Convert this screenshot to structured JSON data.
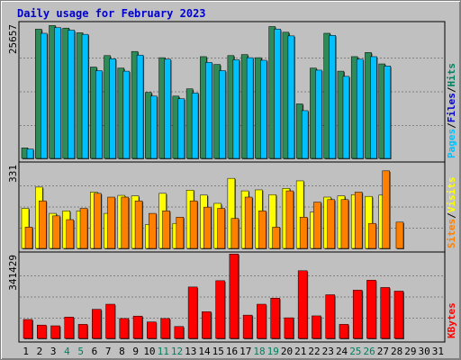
{
  "chart_data": {
    "type": "bar",
    "title": "Daily usage for February 2023",
    "x": [
      "1",
      "2",
      "3",
      "4",
      "5",
      "6",
      "7",
      "8",
      "9",
      "10",
      "11",
      "12",
      "13",
      "14",
      "15",
      "16",
      "17",
      "18",
      "19",
      "20",
      "21",
      "22",
      "23",
      "24",
      "25",
      "26",
      "27",
      "28",
      "29",
      "30",
      "31"
    ],
    "weekend_days": [
      "4",
      "5",
      "11",
      "12",
      "18",
      "19",
      "25",
      "26"
    ],
    "panels": [
      {
        "name": "top",
        "max_label": "25657",
        "ymax": 25657,
        "legend": [
          "Pages",
          "/",
          "Files",
          "/",
          "Hits"
        ],
        "legend_colors": [
          "#00c0ff",
          "#000000",
          "#0000d0",
          "#000000",
          "#008060"
        ],
        "series": [
          {
            "name": "Hits",
            "color": "#2e8b57",
            "values": [
              2020,
              24900,
              25600,
              25100,
              24200,
              17600,
              19800,
              17400,
              20600,
              12700,
              19400,
              12000,
              13400,
              19600,
              18100,
              19800,
              20000,
              19400,
              25400,
              24300,
              10500,
              17400,
              24100,
              16800,
              19600,
              20400,
              18200,
              0,
              0,
              0,
              0
            ]
          },
          {
            "name": "Files",
            "color": "#0000d0",
            "values": [
              0,
              0,
              0,
              0,
              0,
              0,
              0,
              0,
              0,
              0,
              0,
              0,
              0,
              0,
              0,
              0,
              0,
              0,
              0,
              0,
              0,
              0,
              0,
              0,
              0,
              0,
              0,
              0,
              0,
              0,
              0
            ]
          },
          {
            "name": "Pages",
            "color": "#00c0ff",
            "values": [
              1800,
              24100,
              25200,
              24700,
              23900,
              16900,
              19200,
              16800,
              19900,
              12000,
              19100,
              11500,
              12600,
              18500,
              16900,
              19000,
              19400,
              18900,
              24900,
              23600,
              9200,
              17000,
              23700,
              15800,
              19100,
              19600,
              17800,
              0,
              0,
              0,
              0
            ]
          }
        ]
      },
      {
        "name": "middle",
        "max_label": "331",
        "ymax": 331,
        "legend": [
          "Sites",
          "/",
          "Visits"
        ],
        "legend_colors": [
          "#ff8000",
          "#000000",
          "#ffff00"
        ],
        "series": [
          {
            "name": "Visits",
            "color": "#ffff00",
            "values": [
              160,
              245,
              140,
              150,
              150,
              225,
              140,
              212,
              210,
              95,
              220,
              100,
              233,
              213,
              180,
              280,
              230,
              234,
              215,
              240,
              270,
              145,
              205,
              210,
              215,
              208,
              213,
              0,
              0,
              0,
              0
            ]
          },
          {
            "name": "Sites",
            "color": "#ff8000",
            "values": [
              85,
              190,
              130,
              115,
              160,
              220,
              205,
              205,
              190,
              140,
              150,
              125,
              190,
              165,
              160,
              120,
              205,
              150,
              85,
              230,
              125,
              185,
              195,
              195,
              225,
              100,
              310,
              105,
              0,
              0,
              0
            ]
          }
        ]
      },
      {
        "name": "bottom",
        "max_label": "341429",
        "ymax": 341429,
        "legend": [
          "KBytes"
        ],
        "legend_colors": [
          "#ff0000"
        ],
        "series": [
          {
            "name": "KBytes",
            "color": "#ff0000",
            "values": [
              78000,
              55000,
              52000,
              88000,
              58000,
              120000,
              141000,
              82000,
              92000,
              68000,
              82000,
              49000,
              212000,
              110000,
              238000,
              348000,
              96000,
              141000,
              166000,
              85000,
              279000,
              93000,
              180000,
              58000,
              199000,
              240000,
              210000,
              195000,
              0,
              0,
              0
            ]
          }
        ]
      }
    ]
  }
}
